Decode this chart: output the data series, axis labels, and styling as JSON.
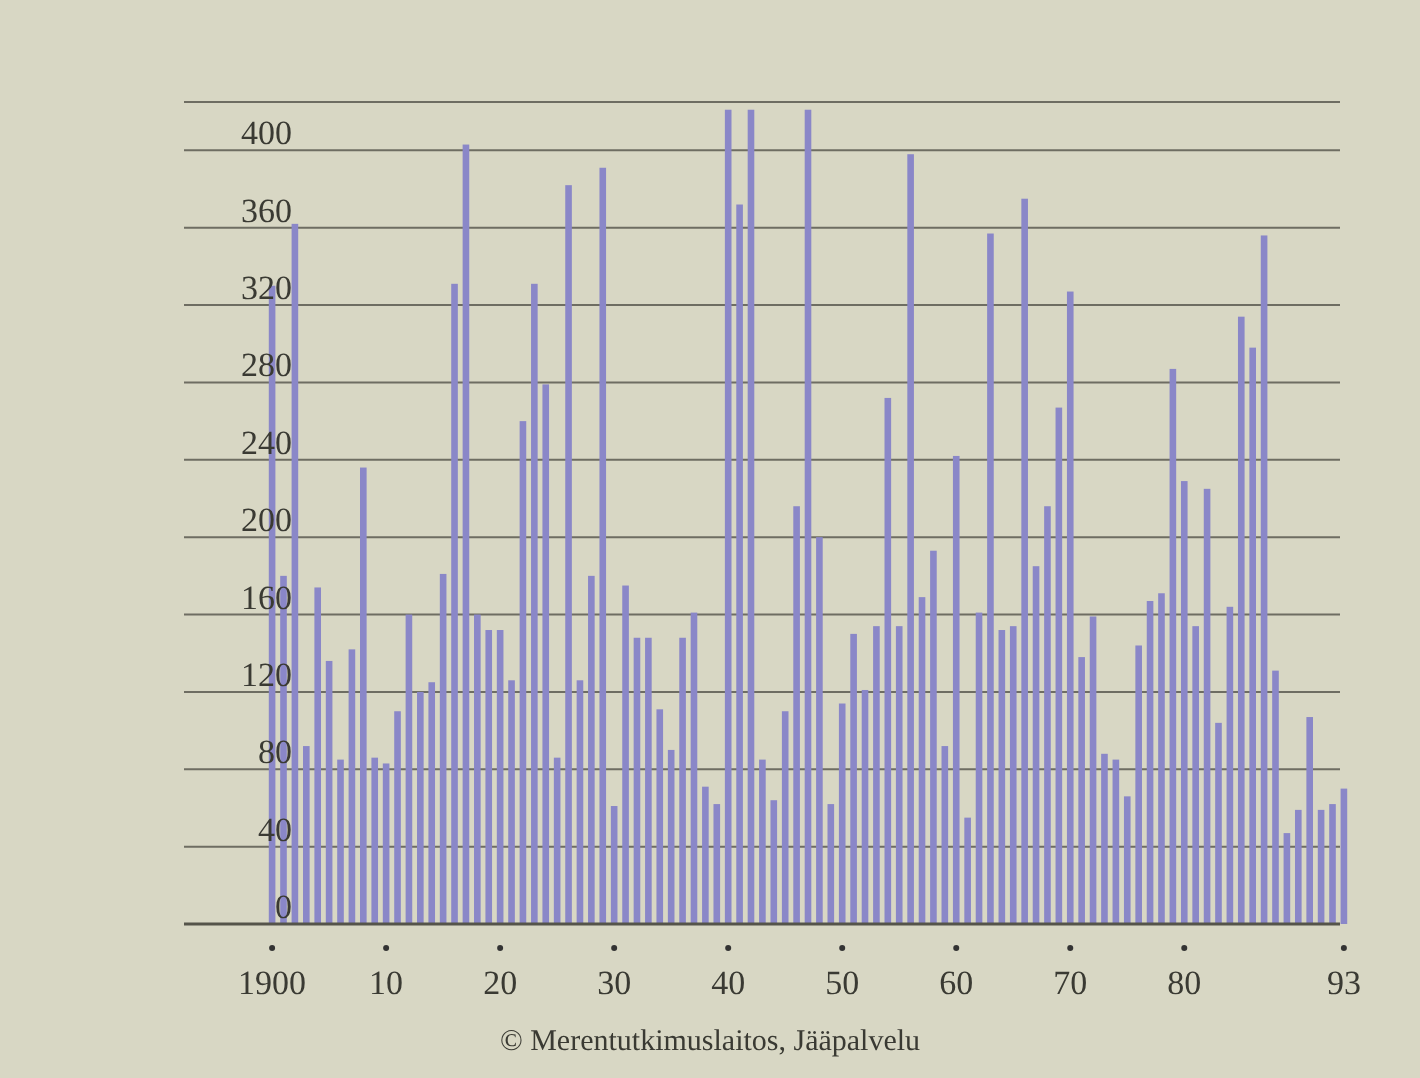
{
  "chart_data": {
    "type": "bar",
    "categories": [
      "1900",
      null,
      null,
      null,
      null,
      null,
      null,
      null,
      null,
      null,
      "10",
      null,
      null,
      null,
      null,
      null,
      null,
      null,
      null,
      null,
      "20",
      null,
      null,
      null,
      null,
      null,
      null,
      null,
      null,
      null,
      "30",
      null,
      null,
      null,
      null,
      null,
      null,
      null,
      null,
      null,
      "40",
      null,
      null,
      null,
      null,
      null,
      null,
      null,
      null,
      null,
      "50",
      null,
      null,
      null,
      null,
      null,
      null,
      null,
      null,
      null,
      "60",
      null,
      null,
      null,
      null,
      null,
      null,
      null,
      null,
      null,
      "70",
      null,
      null,
      null,
      null,
      null,
      null,
      null,
      null,
      null,
      "80",
      null,
      null,
      null,
      null,
      null,
      null,
      null,
      null,
      null,
      null,
      null,
      null,
      null,
      "93"
    ],
    "values": [
      330,
      180,
      362,
      92,
      174,
      136,
      85,
      142,
      236,
      86,
      83,
      110,
      160,
      120,
      125,
      181,
      331,
      403,
      160,
      152,
      152,
      126,
      260,
      331,
      279,
      86,
      382,
      126,
      180,
      391,
      61,
      175,
      148,
      148,
      111,
      90,
      148,
      161,
      71,
      62,
      421,
      372,
      421,
      85,
      64,
      110,
      216,
      421,
      200,
      62,
      114,
      150,
      121,
      154,
      272,
      154,
      398,
      169,
      193,
      92,
      242,
      55,
      161,
      357,
      152,
      154,
      375,
      185,
      216,
      267,
      327,
      138,
      159,
      88,
      85,
      66,
      144,
      167,
      171,
      287,
      229,
      154,
      225,
      104,
      164,
      314,
      298,
      356,
      131,
      47,
      59,
      107,
      59,
      62,
      70
    ],
    "color": "#8a87c8",
    "ylim": [
      0,
      425
    ],
    "yticks": [
      0,
      40,
      80,
      120,
      160,
      200,
      240,
      280,
      320,
      360,
      400
    ],
    "grid": "y",
    "annotations": [
      "© Merentutkimuslaitos, Jääpalvelu"
    ]
  }
}
